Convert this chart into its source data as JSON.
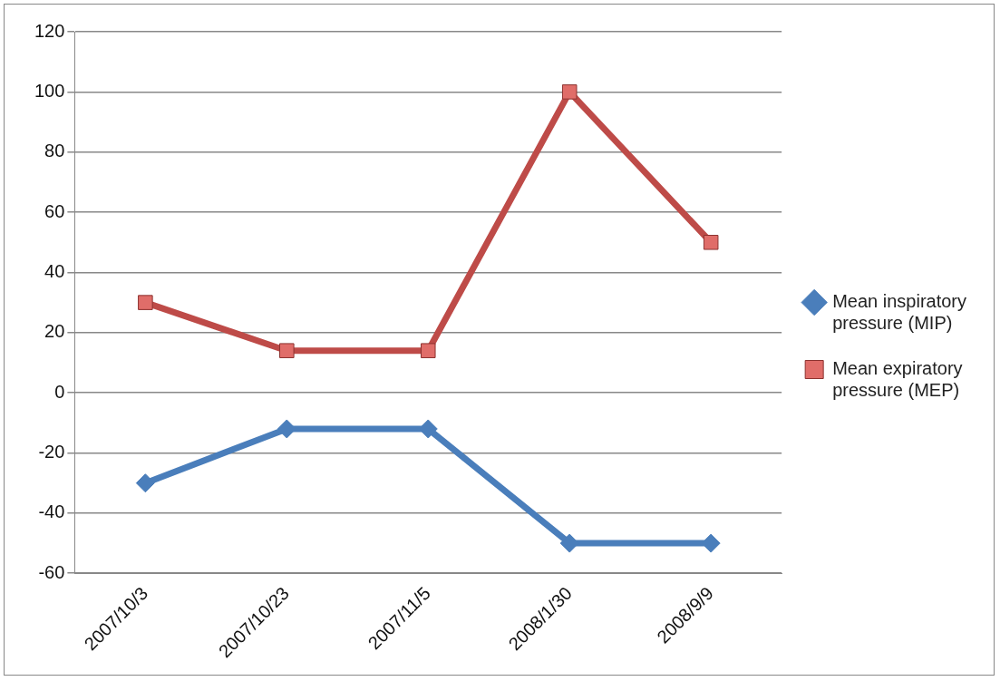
{
  "chart_data": {
    "type": "line",
    "categories": [
      "2007/10/3",
      "2007/10/23",
      "2007/11/5",
      "2008/1/30",
      "2008/9/9"
    ],
    "series": [
      {
        "name": "Mean inspiratory pressure (MIP)",
        "color": "#4a7ebb",
        "marker": "diamond",
        "values": [
          -30,
          -12,
          -12,
          -50,
          -50
        ]
      },
      {
        "name": "Mean expiratory pressure (MEP)",
        "color": "#be4b48",
        "marker": "square",
        "values": [
          30,
          14,
          14,
          100,
          50
        ]
      }
    ],
    "ylim": [
      -60,
      120
    ],
    "yticks": [
      -60,
      -40,
      -20,
      0,
      20,
      40,
      60,
      80,
      100,
      120
    ],
    "grid": "y",
    "legend": "right"
  }
}
